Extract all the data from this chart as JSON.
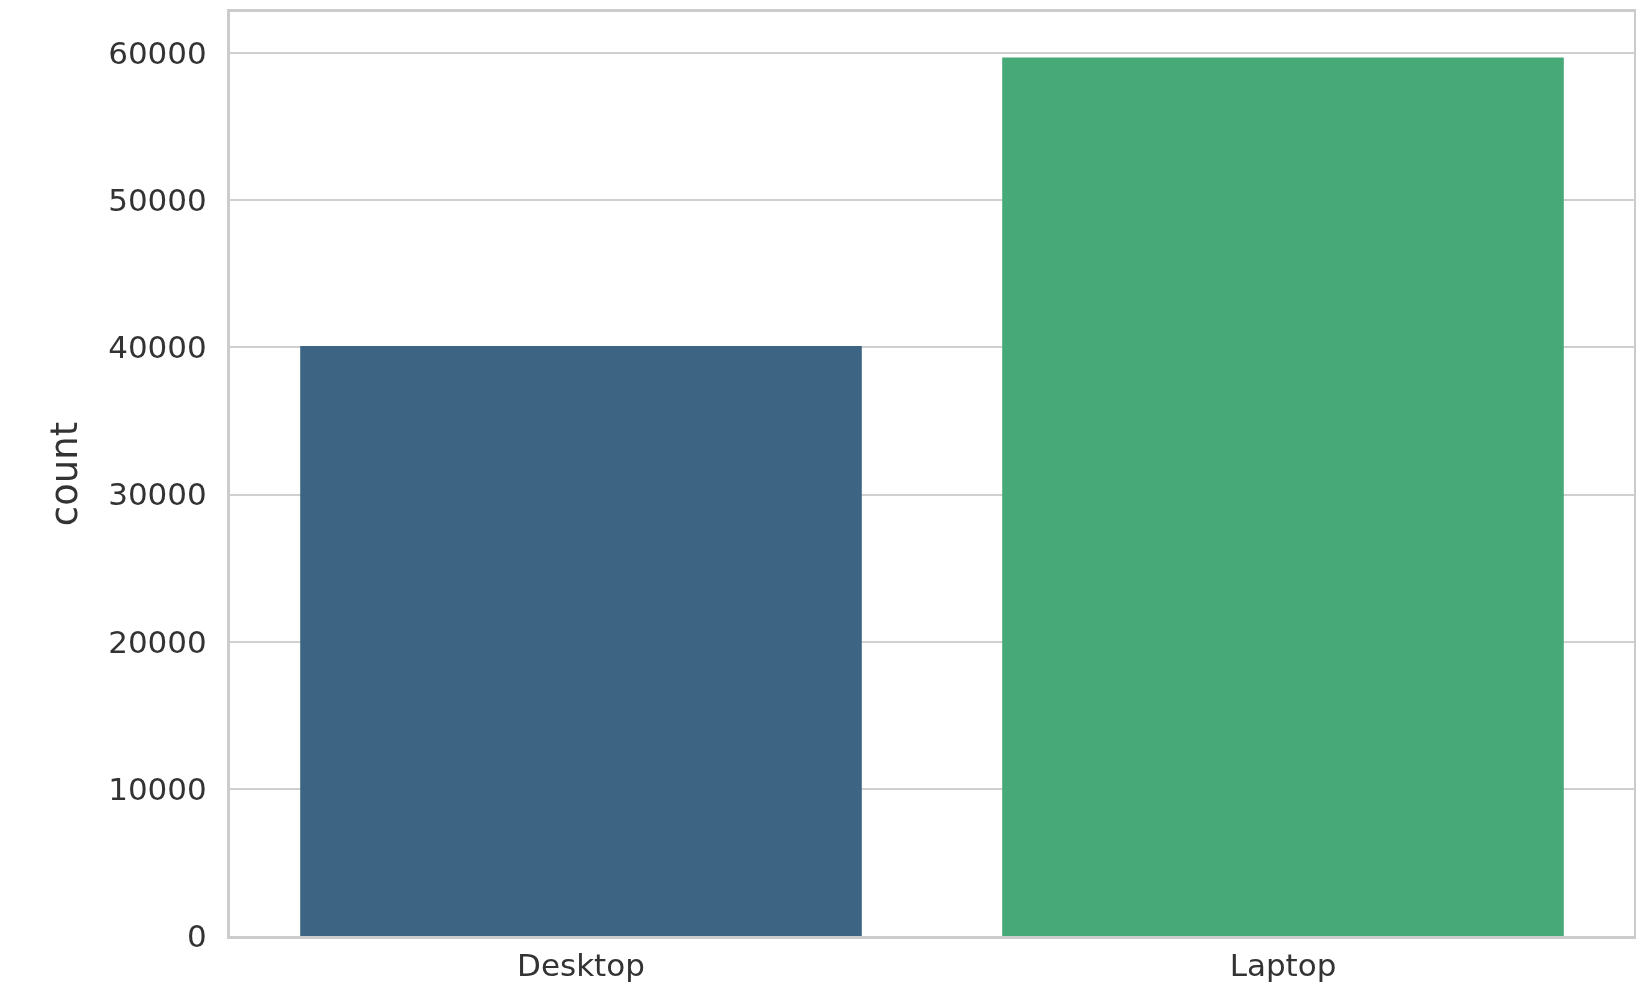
{
  "chart_data": {
    "type": "bar",
    "ylabel": "count",
    "categories": [
      "Desktop",
      "Laptop"
    ],
    "values": [
      40100,
      59700
    ],
    "colors": [
      "#3d6583",
      "#47a878"
    ],
    "ylim": [
      0,
      62800
    ],
    "yticks": [
      0,
      10000,
      20000,
      30000,
      40000,
      50000,
      60000
    ],
    "grid": "y"
  }
}
